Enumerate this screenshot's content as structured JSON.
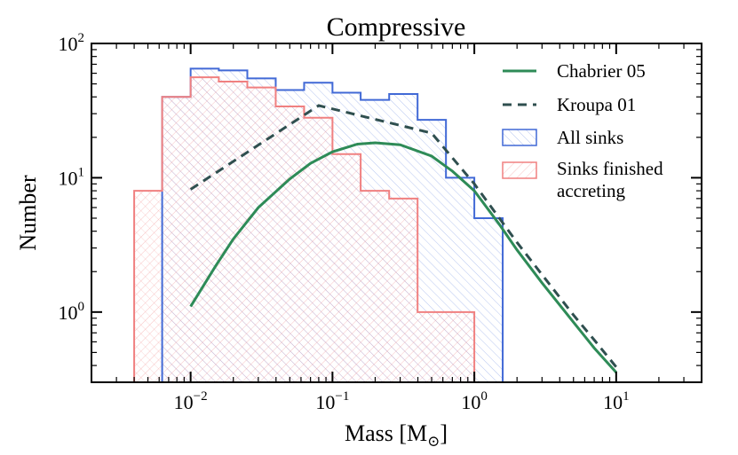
{
  "chart_data": {
    "type": "histogram-line",
    "title": "Compressive",
    "xlabel": "Mass [M",
    "xlabel_sub": "⊙",
    "xlabel_close": "]",
    "ylabel": "Number",
    "xscale": "log",
    "yscale": "log",
    "xlim": [
      0.002,
      40
    ],
    "ylim": [
      0.3,
      100
    ],
    "x_ticks": [
      {
        "value": 0.01,
        "base": "10",
        "exp": "−2"
      },
      {
        "value": 0.1,
        "base": "10",
        "exp": "−1"
      },
      {
        "value": 1,
        "base": "10",
        "exp": "0"
      },
      {
        "value": 10,
        "base": "10",
        "exp": "1"
      }
    ],
    "y_ticks": [
      {
        "value": 1,
        "base": "10",
        "exp": "0"
      },
      {
        "value": 10,
        "base": "10",
        "exp": "1"
      },
      {
        "value": 100,
        "base": "10",
        "exp": "2"
      }
    ],
    "bin_edges": [
      0.004,
      0.0063,
      0.01,
      0.0158,
      0.0251,
      0.0398,
      0.0631,
      0.1,
      0.158,
      0.251,
      0.398,
      0.631,
      1.0,
      1.585
    ],
    "series": [
      {
        "name": "All sinks",
        "kind": "step-hist",
        "color": "#4169d6",
        "values": [
          0,
          40,
          65,
          63,
          55,
          45,
          51,
          43,
          38,
          42,
          27,
          10,
          5
        ]
      },
      {
        "name": "Sinks finished accreting",
        "kind": "step-hist",
        "color": "#f08080",
        "values": [
          8,
          40,
          56,
          52,
          47,
          34,
          28,
          15,
          8,
          7,
          1,
          1,
          0
        ]
      },
      {
        "name": "Chabrier 05",
        "kind": "line",
        "color": "#2e8b57",
        "style": "solid",
        "x": [
          0.01,
          0.015,
          0.02,
          0.03,
          0.05,
          0.07,
          0.1,
          0.15,
          0.2,
          0.3,
          0.5,
          0.7,
          1.0,
          1.5,
          2,
          3,
          5,
          7,
          10
        ],
        "y": [
          1.1,
          2.2,
          3.5,
          6.0,
          9.8,
          12.8,
          15.6,
          17.8,
          18.2,
          17.6,
          14.5,
          11.2,
          8.0,
          4.5,
          2.9,
          1.65,
          0.84,
          0.54,
          0.355
        ]
      },
      {
        "name": "Kroupa 01",
        "kind": "line",
        "color": "#2f4f4f",
        "style": "dashed",
        "x": [
          0.01,
          0.08,
          0.5,
          1.0,
          2,
          3,
          5,
          7,
          10
        ],
        "y": [
          8.2,
          34.5,
          21.5,
          9.0,
          3.3,
          1.9,
          0.95,
          0.62,
          0.39
        ]
      }
    ],
    "legend": {
      "placement": "top-right",
      "entries": [
        "Chabrier 05",
        "Kroupa 01",
        "All sinks",
        "Sinks finished",
        "accreting"
      ]
    }
  }
}
